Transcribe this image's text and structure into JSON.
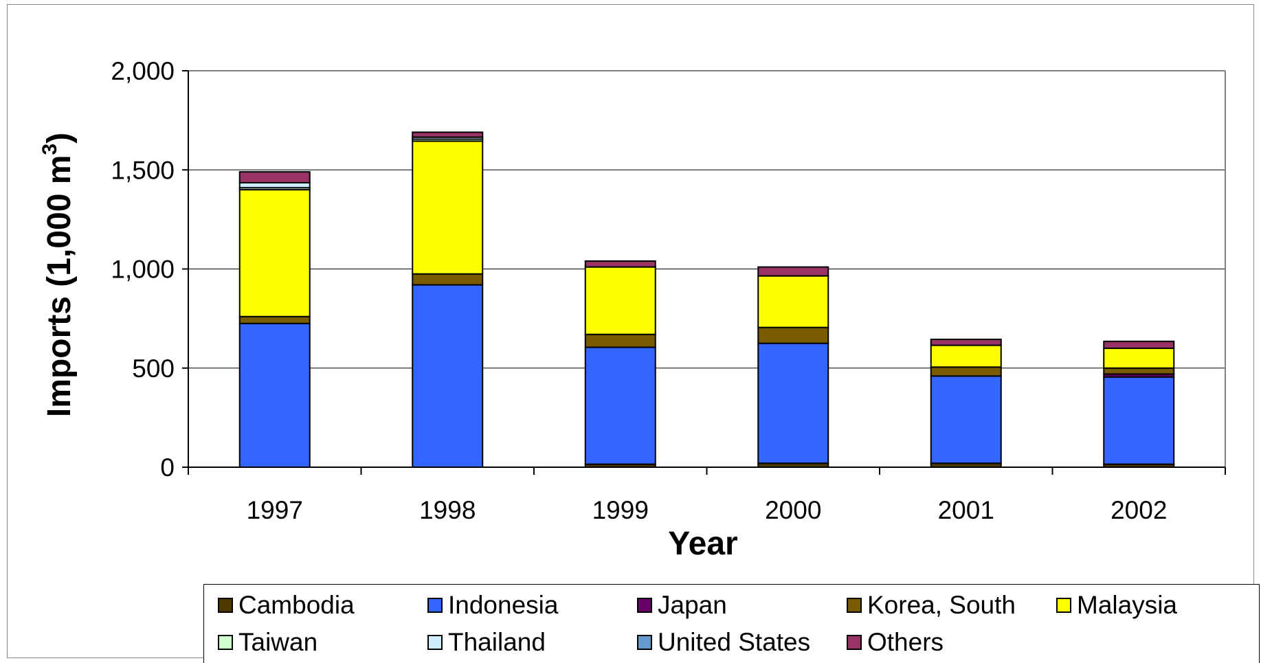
{
  "chart_data": {
    "type": "bar",
    "stacked": true,
    "title": "",
    "xlabel": "Year",
    "ylabel": "Imports (1,000 m3)",
    "ylabel_main": "Imports (1,000 m",
    "ylabel_sup": "3",
    "ylabel_tail": ")",
    "ylim": [
      0,
      2000
    ],
    "yticks": [
      0,
      500,
      1000,
      1500,
      2000
    ],
    "ytick_labels": [
      "0",
      "500",
      "1,000",
      "1,500",
      "2,000"
    ],
    "grid": true,
    "legend_placement": "bottom",
    "categories": [
      "1997",
      "1998",
      "1999",
      "2000",
      "2001",
      "2002"
    ],
    "series": [
      {
        "name": "Cambodia",
        "color": "#4d3800",
        "values": [
          0,
          0,
          15,
          20,
          20,
          15
        ]
      },
      {
        "name": "Indonesia",
        "color": "#3366ff",
        "values": [
          725,
          920,
          590,
          605,
          440,
          440
        ]
      },
      {
        "name": "Japan",
        "color": "#660066",
        "values": [
          0,
          0,
          0,
          0,
          0,
          15
        ]
      },
      {
        "name": "Korea, South",
        "color": "#7a5c00",
        "values": [
          35,
          55,
          65,
          80,
          45,
          30
        ]
      },
      {
        "name": "Malaysia",
        "color": "#ffff00",
        "values": [
          640,
          670,
          340,
          260,
          110,
          100
        ]
      },
      {
        "name": "Taiwan",
        "color": "#ccffcc",
        "values": [
          10,
          10,
          0,
          0,
          0,
          0
        ]
      },
      {
        "name": "Thailand",
        "color": "#cceeff",
        "values": [
          25,
          10,
          0,
          0,
          0,
          0
        ]
      },
      {
        "name": "United States",
        "color": "#6699cc",
        "values": [
          0,
          0,
          0,
          0,
          0,
          0
        ]
      },
      {
        "name": "Others",
        "color": "#993366",
        "values": [
          55,
          25,
          30,
          45,
          30,
          35
        ]
      }
    ]
  }
}
